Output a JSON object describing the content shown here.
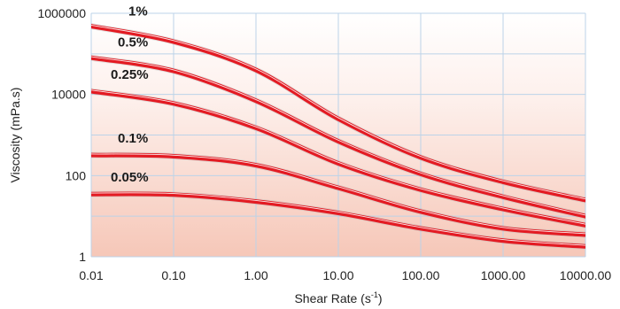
{
  "chart_data": {
    "type": "line",
    "xscale": "log",
    "yscale": "log",
    "xlim": [
      0.01,
      10000
    ],
    "ylim": [
      1,
      1000000
    ],
    "xlabel": "Shear Rate (s",
    "xlabel_sup": "-1",
    "xlabel_end": ")",
    "ylabel": "Viscosity (mPa.s)",
    "grid": true,
    "x_ticks": [
      0.01,
      0.1,
      1,
      10,
      100,
      1000,
      10000
    ],
    "x_tick_labels": [
      "0.01",
      "0.10",
      "1.00",
      "10.00",
      "100.00",
      "1000.00",
      "10000.00"
    ],
    "y_ticks": [
      1,
      100,
      10000,
      1000000
    ],
    "y_tick_labels": [
      "1",
      "100",
      "10000",
      "1000000"
    ],
    "series": [
      {
        "name": "1%",
        "x": [
          0.01,
          0.1,
          1,
          10,
          100,
          1000,
          10000
        ],
        "y": [
          480000,
          200000,
          40000,
          2500,
          280,
          70,
          25
        ]
      },
      {
        "name": "0.5%",
        "x": [
          0.01,
          0.1,
          1,
          10,
          100,
          1000,
          10000
        ],
        "y": [
          80000,
          38000,
          7000,
          700,
          110,
          30,
          10
        ]
      },
      {
        "name": "0.25%",
        "x": [
          0.01,
          0.1,
          1,
          10,
          100,
          1000,
          10000
        ],
        "y": [
          12000,
          6000,
          1500,
          200,
          45,
          15,
          6
        ]
      },
      {
        "name": "0.1%",
        "x": [
          0.01,
          0.1,
          1,
          10,
          100,
          1000,
          10000
        ],
        "y": [
          320,
          300,
          180,
          50,
          13,
          5,
          3.5
        ]
      },
      {
        "name": "0.05%",
        "x": [
          0.01,
          0.1,
          1,
          10,
          100,
          1000,
          10000
        ],
        "y": [
          35,
          34,
          23,
          12,
          5,
          2.5,
          1.8
        ]
      }
    ],
    "colors": {
      "line": "#e31b23",
      "line_highlight": "#ffffff",
      "grid": "#bcd3e8",
      "gradient_top": "#ffffff",
      "gradient_bottom": "#f6c7b8"
    }
  }
}
